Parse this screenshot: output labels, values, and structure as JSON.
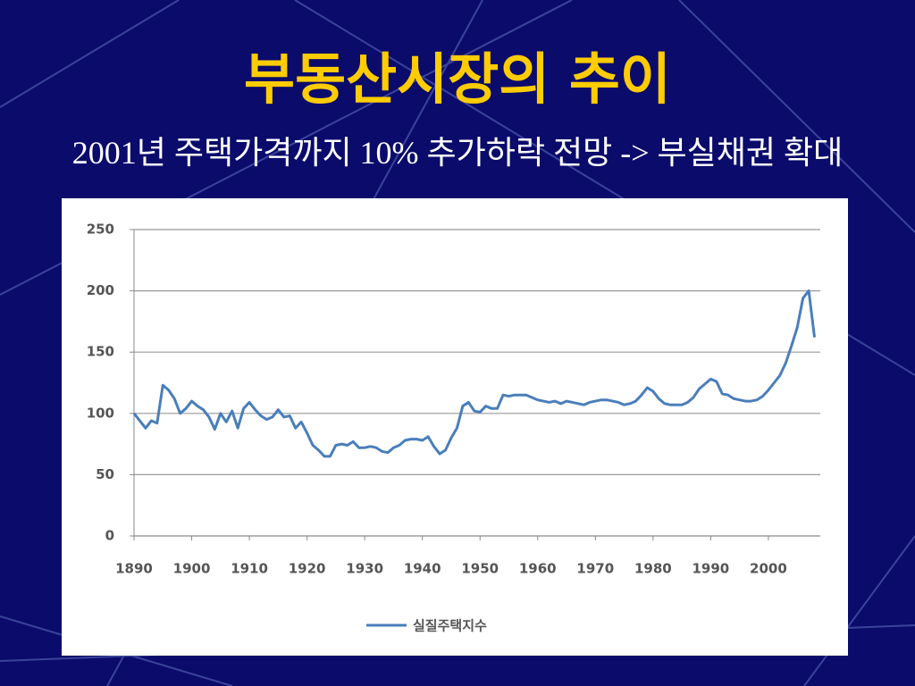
{
  "title": "부동산시장의 추이",
  "subtitle": "2001년 주택가격까지 10% 추가하락 전망 -> 부실채권 확대",
  "chart_data": {
    "type": "line",
    "x": [
      1890,
      1891,
      1892,
      1893,
      1894,
      1895,
      1896,
      1897,
      1898,
      1899,
      1900,
      1901,
      1902,
      1903,
      1904,
      1905,
      1906,
      1907,
      1908,
      1909,
      1910,
      1911,
      1912,
      1913,
      1914,
      1915,
      1916,
      1917,
      1918,
      1919,
      1920,
      1921,
      1922,
      1923,
      1924,
      1925,
      1926,
      1927,
      1928,
      1929,
      1930,
      1931,
      1932,
      1933,
      1934,
      1935,
      1936,
      1937,
      1938,
      1939,
      1940,
      1941,
      1942,
      1943,
      1944,
      1945,
      1946,
      1947,
      1948,
      1949,
      1950,
      1951,
      1952,
      1953,
      1954,
      1955,
      1956,
      1957,
      1958,
      1959,
      1960,
      1961,
      1962,
      1963,
      1964,
      1965,
      1966,
      1967,
      1968,
      1969,
      1970,
      1971,
      1972,
      1973,
      1974,
      1975,
      1976,
      1977,
      1978,
      1979,
      1980,
      1981,
      1982,
      1983,
      1984,
      1985,
      1986,
      1987,
      1988,
      1989,
      1990,
      1991,
      1992,
      1993,
      1994,
      1995,
      1996,
      1997,
      1998,
      1999,
      2000,
      2001,
      2002,
      2003,
      2004,
      2005,
      2006,
      2007,
      2008
    ],
    "series": [
      {
        "name": "실질주택지수",
        "color": "#4a7ebb",
        "values": [
          100,
          94,
          88,
          94,
          92,
          123,
          119,
          112,
          100,
          104,
          110,
          106,
          103,
          97,
          87,
          100,
          93,
          102,
          88,
          104,
          109,
          103,
          98,
          95,
          97,
          103,
          97,
          98,
          88,
          93,
          84,
          74,
          70,
          65,
          65,
          74,
          75,
          74,
          77,
          72,
          72,
          73,
          72,
          69,
          68,
          72,
          74,
          78,
          79,
          79,
          78,
          81,
          73,
          67,
          70,
          80,
          88,
          106,
          109,
          102,
          101,
          106,
          104,
          104,
          115,
          114,
          115,
          115,
          115,
          113,
          111,
          110,
          109,
          110,
          108,
          110,
          109,
          108,
          107,
          109,
          110,
          111,
          111,
          110,
          109,
          107,
          108,
          110,
          115,
          121,
          118,
          112,
          108,
          107,
          107,
          107,
          109,
          113,
          120,
          124,
          128,
          126,
          116,
          115,
          112,
          111,
          110,
          110,
          111,
          114,
          119,
          125,
          131,
          141,
          155,
          170,
          194,
          200,
          162
        ]
      }
    ],
    "xlim": [
      1890,
      2009
    ],
    "xticks": [
      1890,
      1900,
      1910,
      1920,
      1930,
      1940,
      1950,
      1960,
      1970,
      1980,
      1990,
      2000
    ],
    "ylim": [
      0,
      250
    ],
    "yticks": [
      0,
      50,
      100,
      150,
      200,
      250
    ],
    "grid": true
  }
}
